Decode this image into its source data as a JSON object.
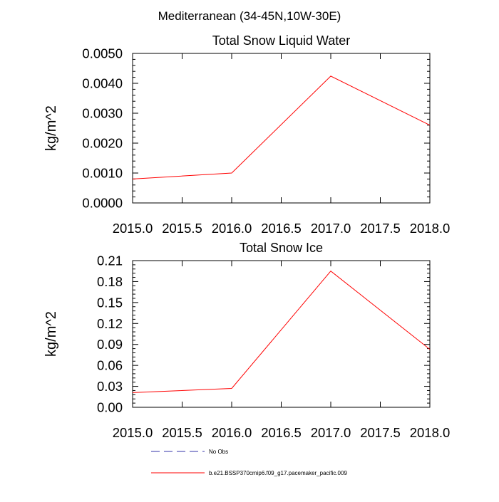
{
  "figure": {
    "supertitle": "Mediterranean (34-45N,10W-30E)"
  },
  "chart_data": [
    {
      "type": "line",
      "title": "Total Snow Liquid Water",
      "xlabel": "",
      "ylabel": "kg/m^2",
      "xlim": [
        2015.0,
        2018.0
      ],
      "ylim": [
        0.0,
        0.005
      ],
      "x_ticks": [
        "2015.0",
        "2015.5",
        "2016.0",
        "2016.5",
        "2017.0",
        "2017.5",
        "2018.0"
      ],
      "y_ticks": [
        "0.0000",
        "0.0010",
        "0.0020",
        "0.0030",
        "0.0040",
        "0.0050"
      ],
      "grid": false,
      "series": [
        {
          "name": "b.e21.BSSP370cmip6.f09_g17.pacemaker_pacific.009",
          "color": "#ff0000",
          "x": [
            2015.0,
            2016.0,
            2017.0,
            2018.0
          ],
          "y": [
            0.0008,
            0.001,
            0.00424,
            0.0026
          ]
        }
      ]
    },
    {
      "type": "line",
      "title": "Total Snow Ice",
      "xlabel": "",
      "ylabel": "kg/m^2",
      "xlim": [
        2015.0,
        2018.0
      ],
      "ylim": [
        0.0,
        0.21
      ],
      "x_ticks": [
        "2015.0",
        "2015.5",
        "2016.0",
        "2016.5",
        "2017.0",
        "2017.5",
        "2018.0"
      ],
      "y_ticks": [
        "0.00",
        "0.03",
        "0.06",
        "0.09",
        "0.12",
        "0.15",
        "0.18",
        "0.21"
      ],
      "grid": false,
      "series": [
        {
          "name": "b.e21.BSSP370cmip6.f09_g17.pacemaker_pacific.009",
          "color": "#ff0000",
          "x": [
            2015.0,
            2016.0,
            2017.0,
            2018.0
          ],
          "y": [
            0.021,
            0.027,
            0.195,
            0.083
          ]
        }
      ]
    }
  ],
  "legend": {
    "placement": "bottom",
    "items": [
      {
        "label": "No Obs",
        "color": "#3333aa",
        "style": "dashed"
      },
      {
        "label": "b.e21.BSSP370cmip6.f09_g17.pacemaker_pacific.009",
        "color": "#ff0000",
        "style": "solid"
      }
    ]
  }
}
